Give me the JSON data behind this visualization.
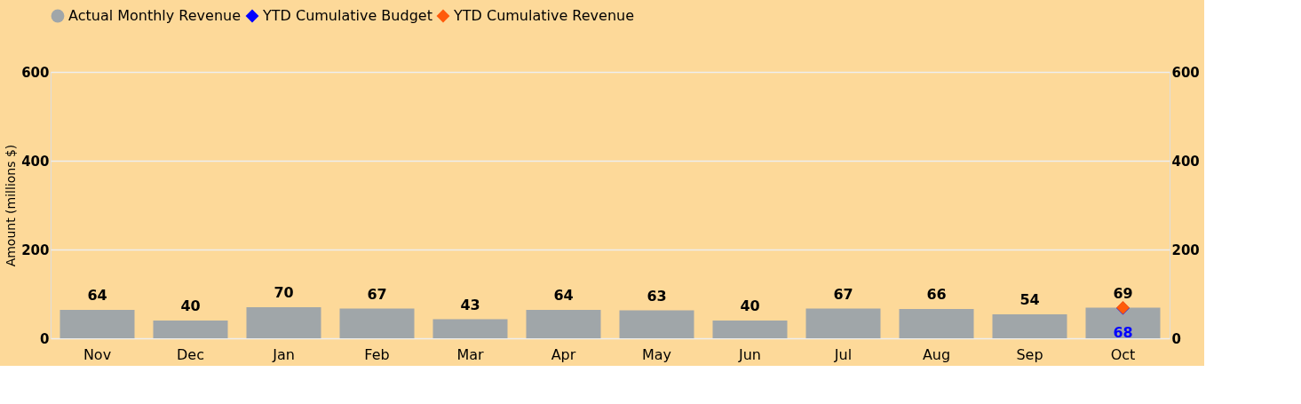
{
  "chart_data": {
    "type": "bar",
    "categories": [
      "Nov",
      "Dec",
      "Jan",
      "Feb",
      "Mar",
      "Apr",
      "May",
      "Jun",
      "Jul",
      "Aug",
      "Sep",
      "Oct"
    ],
    "series": [
      {
        "name": "Actual Monthly Revenue",
        "color": "#a0a6a9",
        "values": [
          64,
          40,
          70,
          67,
          43,
          64,
          63,
          40,
          67,
          66,
          54,
          69
        ],
        "value_labels": [
          "64",
          "40",
          "70",
          "67",
          "43",
          "64",
          "63",
          "40",
          "67",
          "66",
          "54",
          "69"
        ]
      },
      {
        "name": "YTD Cumulative Budget",
        "type": "scatter",
        "marker": "diamond",
        "axis": "y2",
        "color": "#0000ff",
        "values": [
          null,
          null,
          null,
          null,
          null,
          null,
          null,
          null,
          null,
          null,
          null,
          68
        ],
        "value_labels": [
          null,
          null,
          null,
          null,
          null,
          null,
          null,
          null,
          null,
          null,
          null,
          "68"
        ]
      },
      {
        "name": "YTD Cumulative Revenue",
        "type": "scatter",
        "marker": "diamond",
        "axis": "y2",
        "color": "#ff5a0a",
        "values": [
          null,
          null,
          null,
          null,
          null,
          null,
          null,
          null,
          null,
          null,
          null,
          69
        ]
      }
    ],
    "ylabel": "Amount (millions $)",
    "ylim": [
      0,
      600
    ],
    "yticks": [
      0,
      200,
      400,
      600
    ],
    "y2lim": [
      0,
      600
    ],
    "y2ticks": [
      0,
      200,
      400,
      600
    ],
    "grid": "y",
    "legend": "top"
  }
}
